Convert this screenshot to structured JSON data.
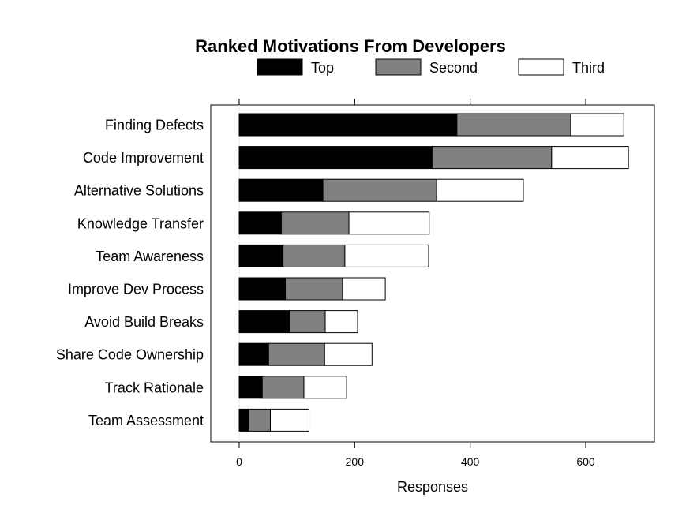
{
  "chart_data": {
    "type": "bar",
    "orientation": "horizontal",
    "stacked": true,
    "title": "Ranked Motivations From Developers",
    "xlabel": "Responses",
    "ylabel": "",
    "xlim": [
      -25,
      720
    ],
    "x_ticks": [
      0,
      200,
      400,
      600
    ],
    "x_tick_labels": [
      "0",
      "200",
      "400",
      "600"
    ],
    "grid": false,
    "legend_position": "top",
    "categories": [
      "Finding Defects",
      "Code Improvement",
      "Alternative Solutions",
      "Knowledge Transfer",
      "Team Awareness",
      "Improve Dev Process",
      "Avoid Build Breaks",
      "Share Code Ownership",
      "Track Rationale",
      "Team Assessment"
    ],
    "series": [
      {
        "name": "Top",
        "color": "#000000",
        "values": [
          377,
          334,
          145,
          73,
          76,
          80,
          87,
          51,
          40,
          16
        ]
      },
      {
        "name": "Second",
        "color": "#808080",
        "values": [
          197,
          207,
          197,
          117,
          107,
          99,
          62,
          97,
          72,
          38
        ]
      },
      {
        "name": "Third",
        "color": "#ffffff",
        "values": [
          92,
          133,
          150,
          139,
          145,
          74,
          56,
          82,
          74,
          67
        ]
      }
    ]
  }
}
